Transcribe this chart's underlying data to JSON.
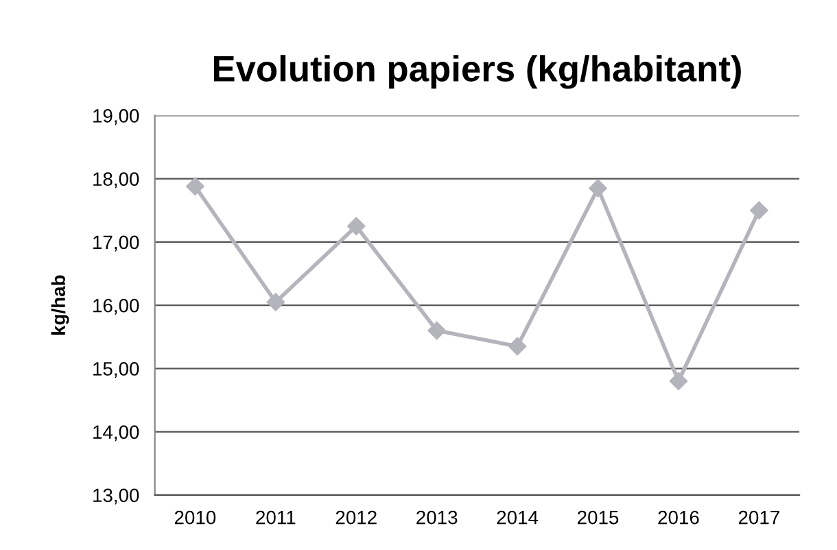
{
  "chart_data": {
    "type": "line",
    "title": "Evolution papiers (kg/habitant)",
    "ylabel": "kg/hab",
    "categories": [
      "2010",
      "2011",
      "2012",
      "2013",
      "2014",
      "2015",
      "2016",
      "2017"
    ],
    "series": [
      {
        "color": "#b4b4bc",
        "values": [
          17.88,
          16.05,
          17.25,
          15.6,
          15.35,
          17.85,
          14.8,
          17.5
        ]
      }
    ],
    "ylim": [
      13,
      19
    ],
    "yticks": [
      {
        "value": 13,
        "label": "13,00"
      },
      {
        "value": 14,
        "label": "14,00"
      },
      {
        "value": 15,
        "label": "15,00"
      },
      {
        "value": 16,
        "label": "16,00"
      },
      {
        "value": 17,
        "label": "17,00"
      },
      {
        "value": 18,
        "label": "18,00"
      },
      {
        "value": 19,
        "label": "19,00"
      }
    ],
    "grid": "y",
    "marker": "diamond",
    "line_style": "solid"
  }
}
